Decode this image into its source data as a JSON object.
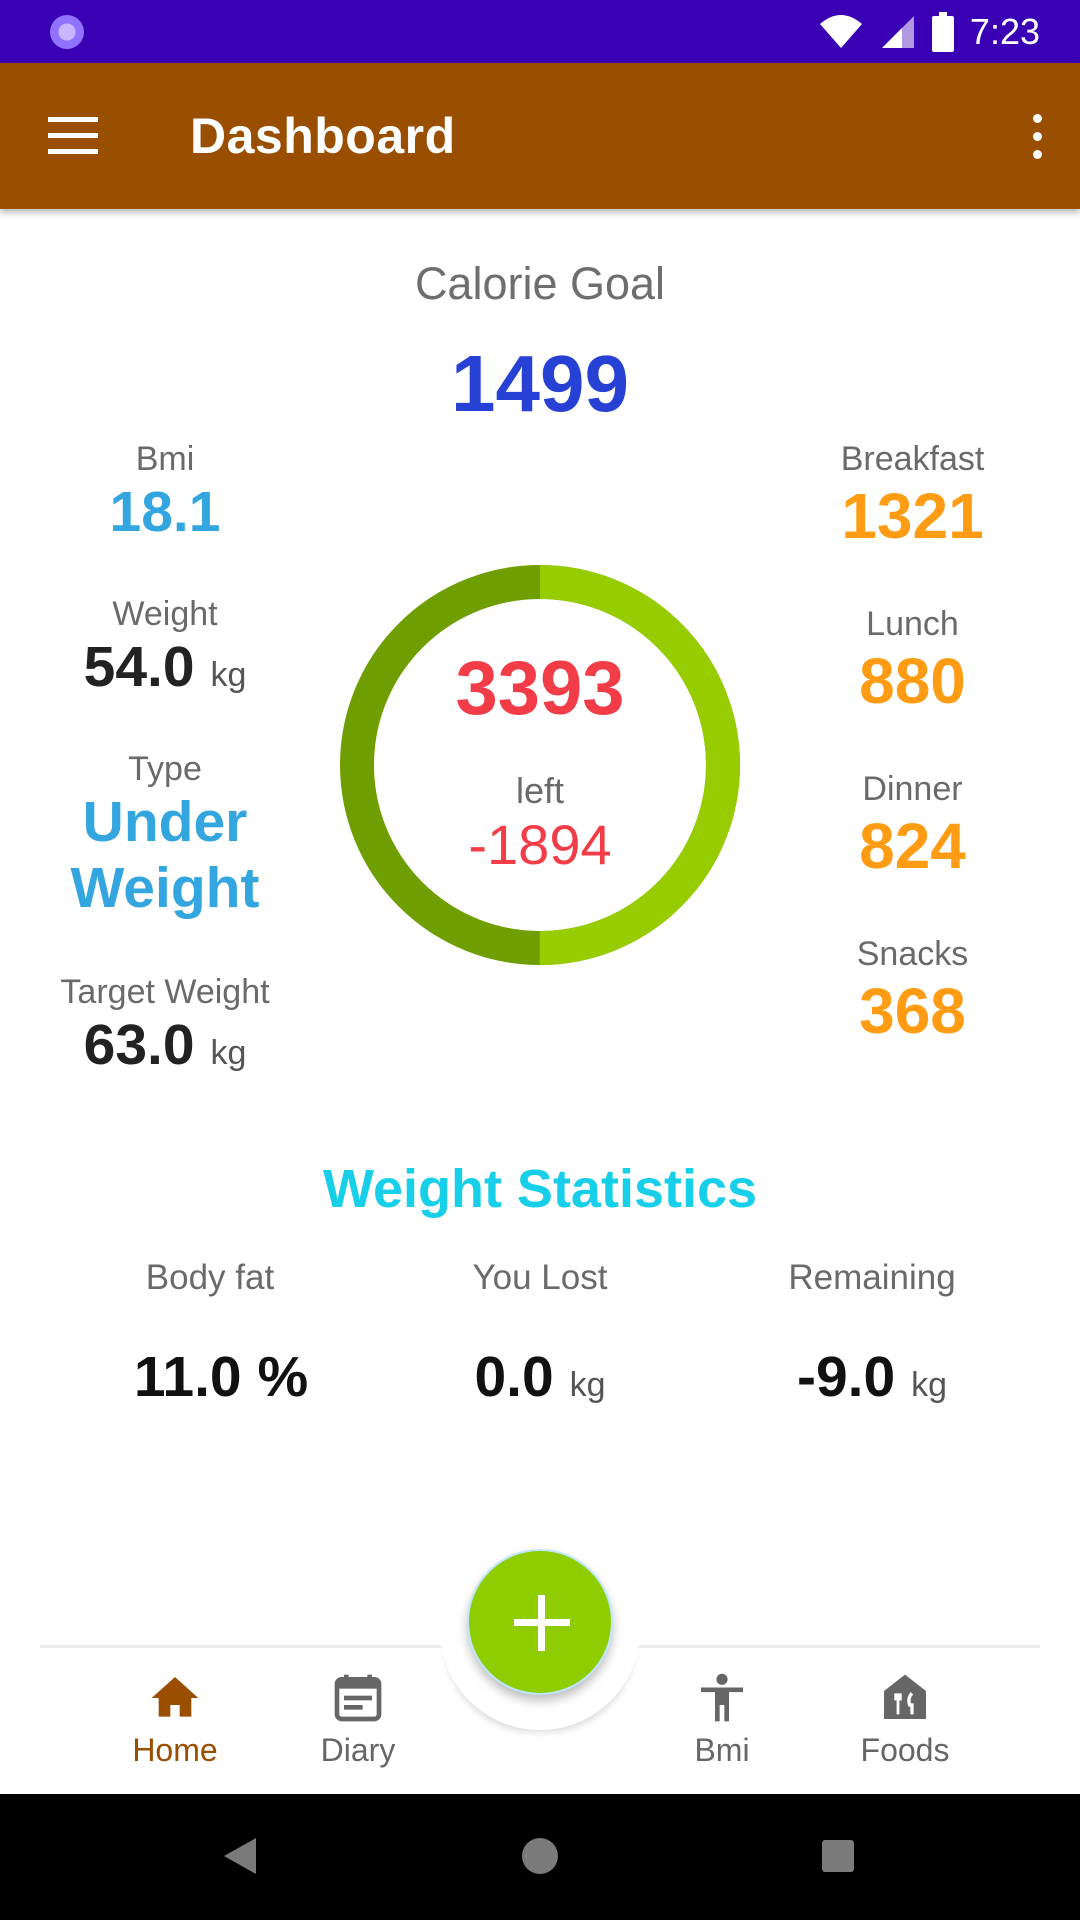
{
  "status": {
    "time": "7:23"
  },
  "appbar": {
    "title": "Dashboard"
  },
  "calorie_goal": {
    "label": "Calorie Goal",
    "value": "1499"
  },
  "left": {
    "bmi_label": "Bmi",
    "bmi_value": "18.1",
    "weight_label": "Weight",
    "weight_value": "54.0",
    "weight_unit": "kg",
    "type_label": "Type",
    "type_line1": "Under",
    "type_line2": "Weight",
    "target_label": "Target Weight",
    "target_value": "63.0",
    "target_unit": "kg"
  },
  "ring": {
    "value": "3393",
    "left_label": "left",
    "remaining": "-1894",
    "progress": 0.5
  },
  "meals": [
    {
      "label": "Breakfast",
      "value": "1321"
    },
    {
      "label": "Lunch",
      "value": "880"
    },
    {
      "label": "Dinner",
      "value": "824"
    },
    {
      "label": "Snacks",
      "value": "368"
    }
  ],
  "weight_stats": {
    "title": "Weight Statistics",
    "body_fat_label": "Body fat",
    "body_fat_value": "11.0 %",
    "lost_label": "You Lost",
    "lost_value": "0.0",
    "lost_unit": "kg",
    "remaining_label": "Remaining",
    "remaining_value": "-9.0",
    "remaining_unit": "kg"
  },
  "nav": [
    {
      "label": "Home",
      "icon": "home-icon"
    },
    {
      "label": "Diary",
      "icon": "diary-icon"
    },
    {
      "label": "Bmi",
      "icon": "person-icon"
    },
    {
      "label": "Foods",
      "icon": "restaurant-icon"
    }
  ],
  "colors": {
    "accent": "#9a4e00",
    "status": "#3a00b3",
    "fab": "#8fcc00"
  }
}
